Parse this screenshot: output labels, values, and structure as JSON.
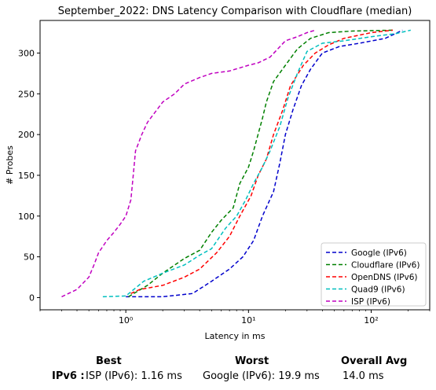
{
  "chart_data": {
    "type": "line",
    "title": "September_2022: DNS Latency Comparison with Cloudflare (median)",
    "xlabel": "Latency in ms",
    "ylabel": "# Probes",
    "xscale": "log",
    "xlim": [
      0.2,
      300
    ],
    "ylim": [
      -15,
      340
    ],
    "xticks": [
      1,
      10,
      100
    ],
    "xtick_labels": [
      "10⁰",
      "10¹",
      "10²"
    ],
    "yticks": [
      0,
      50,
      100,
      150,
      200,
      250,
      300
    ],
    "grid": false,
    "legend_position": "lower-right",
    "series": [
      {
        "name": "Google (IPv6)",
        "color": "#0000cc",
        "points": [
          [
            1.0,
            1
          ],
          [
            2.0,
            1
          ],
          [
            3.5,
            5
          ],
          [
            5.0,
            20
          ],
          [
            7.0,
            35
          ],
          [
            9.0,
            50
          ],
          [
            11.0,
            70
          ],
          [
            13.0,
            100
          ],
          [
            16.0,
            130
          ],
          [
            18.0,
            165
          ],
          [
            20.0,
            200
          ],
          [
            23.0,
            230
          ],
          [
            27.0,
            260
          ],
          [
            32.0,
            280
          ],
          [
            40.0,
            300
          ],
          [
            55.0,
            308
          ],
          [
            80.0,
            312
          ],
          [
            130.0,
            318
          ],
          [
            180.0,
            328
          ]
        ]
      },
      {
        "name": "Cloudflare (IPv6)",
        "color": "#008000",
        "points": [
          [
            1.05,
            1
          ],
          [
            1.5,
            15
          ],
          [
            2.0,
            30
          ],
          [
            3.0,
            48
          ],
          [
            4.0,
            58
          ],
          [
            5.0,
            80
          ],
          [
            6.0,
            95
          ],
          [
            7.5,
            110
          ],
          [
            8.5,
            140
          ],
          [
            10.0,
            160
          ],
          [
            11.0,
            180
          ],
          [
            13.0,
            220
          ],
          [
            14.0,
            240
          ],
          [
            16.0,
            265
          ],
          [
            20.0,
            285
          ],
          [
            25.0,
            305
          ],
          [
            32.0,
            318
          ],
          [
            45.0,
            325
          ],
          [
            70.0,
            327
          ],
          [
            150.0,
            328
          ]
        ]
      },
      {
        "name": "OpenDNS (IPv6)",
        "color": "#ff0000",
        "points": [
          [
            1.1,
            5
          ],
          [
            1.3,
            10
          ],
          [
            2.0,
            15
          ],
          [
            3.0,
            25
          ],
          [
            4.0,
            35
          ],
          [
            5.5,
            55
          ],
          [
            7.0,
            75
          ],
          [
            8.5,
            100
          ],
          [
            10.5,
            125
          ],
          [
            12.0,
            150
          ],
          [
            14.0,
            170
          ],
          [
            16.0,
            200
          ],
          [
            19.0,
            230
          ],
          [
            22.0,
            260
          ],
          [
            28.0,
            285
          ],
          [
            35.0,
            300
          ],
          [
            45.0,
            310
          ],
          [
            60.0,
            318
          ],
          [
            100.0,
            325
          ],
          [
            150.0,
            328
          ]
        ]
      },
      {
        "name": "Quad9 (IPv6)",
        "color": "#00bfbf",
        "points": [
          [
            0.65,
            1
          ],
          [
            1.0,
            2
          ],
          [
            1.4,
            20
          ],
          [
            2.0,
            30
          ],
          [
            3.0,
            40
          ],
          [
            4.0,
            52
          ],
          [
            5.0,
            60
          ],
          [
            6.5,
            85
          ],
          [
            8.0,
            100
          ],
          [
            9.5,
            120
          ],
          [
            11.0,
            140
          ],
          [
            13.0,
            160
          ],
          [
            15.0,
            180
          ],
          [
            18.0,
            210
          ],
          [
            21.0,
            245
          ],
          [
            25.0,
            275
          ],
          [
            30.0,
            302
          ],
          [
            40.0,
            312
          ],
          [
            60.0,
            315
          ],
          [
            100.0,
            320
          ],
          [
            160.0,
            324
          ],
          [
            210.0,
            328
          ]
        ]
      },
      {
        "name": "ISP (IPv6)",
        "color": "#c000c0",
        "points": [
          [
            0.3,
            1
          ],
          [
            0.4,
            10
          ],
          [
            0.5,
            25
          ],
          [
            0.55,
            40
          ],
          [
            0.6,
            55
          ],
          [
            0.7,
            70
          ],
          [
            0.8,
            80
          ],
          [
            0.9,
            90
          ],
          [
            1.0,
            100
          ],
          [
            1.1,
            120
          ],
          [
            1.15,
            150
          ],
          [
            1.2,
            180
          ],
          [
            1.35,
            200
          ],
          [
            1.5,
            215
          ],
          [
            2.0,
            240
          ],
          [
            2.5,
            250
          ],
          [
            3.0,
            262
          ],
          [
            4.0,
            270
          ],
          [
            5.0,
            275
          ],
          [
            7.0,
            278
          ],
          [
            10.0,
            285
          ],
          [
            12.0,
            288
          ],
          [
            15.0,
            295
          ],
          [
            20.0,
            315
          ],
          [
            25.0,
            320
          ],
          [
            30.0,
            325
          ],
          [
            35.0,
            328
          ]
        ]
      }
    ]
  },
  "summary": {
    "headers": {
      "best": "Best",
      "worst": "Worst",
      "overall": "Overall Avg"
    },
    "row_label": "IPv6 :",
    "best": "ISP (IPv6): 1.16 ms",
    "worst": "Google (IPv6): 19.9 ms",
    "overall": "14.0 ms"
  }
}
